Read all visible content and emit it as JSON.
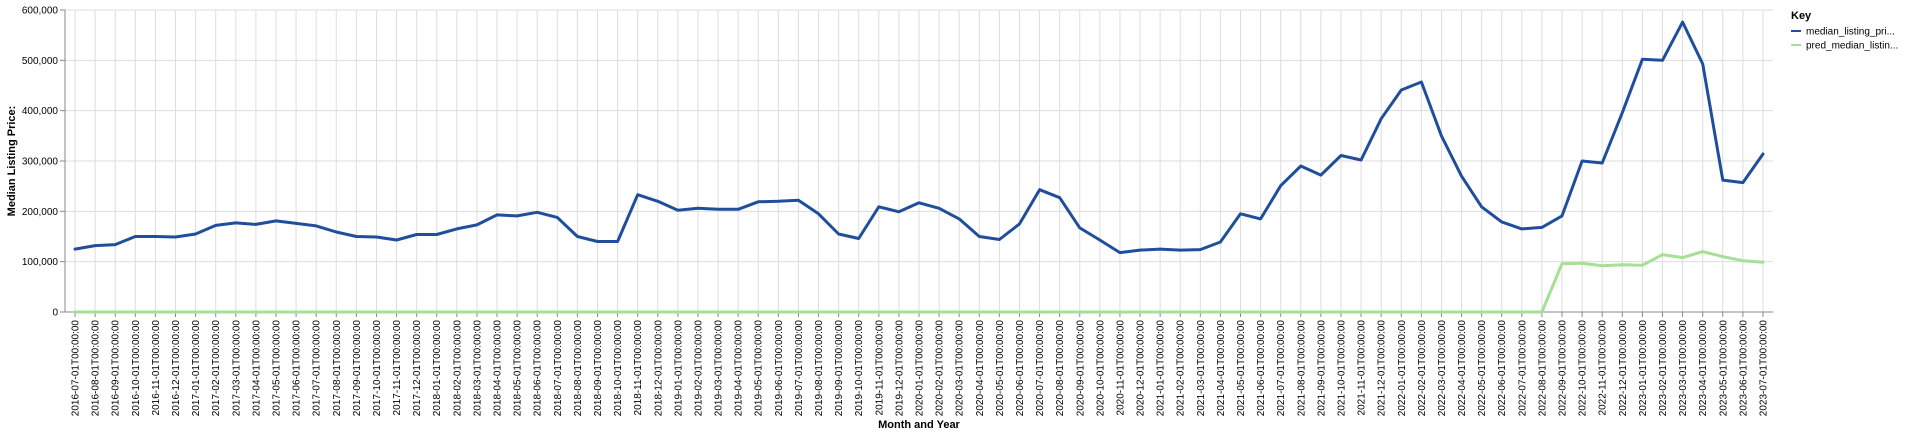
{
  "chart_data": {
    "type": "line",
    "xlabel": "Month and Year",
    "ylabel": "Median Listing Price:",
    "ylim": [
      0,
      600000
    ],
    "yticks": [
      0,
      100000,
      200000,
      300000,
      400000,
      500000,
      600000
    ],
    "ytick_labels": [
      "0",
      "100,000",
      "200,000",
      "300,000",
      "400,000",
      "500,000",
      "600,000"
    ],
    "grid": true,
    "legend": {
      "title": "Key",
      "position": "top-right"
    },
    "x": [
      "2016-07-01T00:00:00",
      "2016-08-01T00:00:00",
      "2016-09-01T00:00:00",
      "2016-10-01T00:00:00",
      "2016-11-01T00:00:00",
      "2016-12-01T00:00:00",
      "2017-01-01T00:00:00",
      "2017-02-01T00:00:00",
      "2017-03-01T00:00:00",
      "2017-04-01T00:00:00",
      "2017-05-01T00:00:00",
      "2017-06-01T00:00:00",
      "2017-07-01T00:00:00",
      "2017-08-01T00:00:00",
      "2017-09-01T00:00:00",
      "2017-10-01T00:00:00",
      "2017-11-01T00:00:00",
      "2017-12-01T00:00:00",
      "2018-01-01T00:00:00",
      "2018-02-01T00:00:00",
      "2018-03-01T00:00:00",
      "2018-04-01T00:00:00",
      "2018-05-01T00:00:00",
      "2018-06-01T00:00:00",
      "2018-07-01T00:00:00",
      "2018-08-01T00:00:00",
      "2018-09-01T00:00:00",
      "2018-10-01T00:00:00",
      "2018-11-01T00:00:00",
      "2018-12-01T00:00:00",
      "2019-01-01T00:00:00",
      "2019-02-01T00:00:00",
      "2019-03-01T00:00:00",
      "2019-04-01T00:00:00",
      "2019-05-01T00:00:00",
      "2019-06-01T00:00:00",
      "2019-07-01T00:00:00",
      "2019-08-01T00:00:00",
      "2019-09-01T00:00:00",
      "2019-10-01T00:00:00",
      "2019-11-01T00:00:00",
      "2019-12-01T00:00:00",
      "2020-01-01T00:00:00",
      "2020-02-01T00:00:00",
      "2020-03-01T00:00:00",
      "2020-04-01T00:00:00",
      "2020-05-01T00:00:00",
      "2020-06-01T00:00:00",
      "2020-07-01T00:00:00",
      "2020-08-01T00:00:00",
      "2020-09-01T00:00:00",
      "2020-10-01T00:00:00",
      "2020-11-01T00:00:00",
      "2020-12-01T00:00:00",
      "2021-01-01T00:00:00",
      "2021-02-01T00:00:00",
      "2021-03-01T00:00:00",
      "2021-04-01T00:00:00",
      "2021-05-01T00:00:00",
      "2021-06-01T00:00:00",
      "2021-07-01T00:00:00",
      "2021-08-01T00:00:00",
      "2021-09-01T00:00:00",
      "2021-10-01T00:00:00",
      "2021-11-01T00:00:00",
      "2021-12-01T00:00:00",
      "2022-01-01T00:00:00",
      "2022-02-01T00:00:00",
      "2022-03-01T00:00:00",
      "2022-04-01T00:00:00",
      "2022-05-01T00:00:00",
      "2022-06-01T00:00:00",
      "2022-07-01T00:00:00",
      "2022-08-01T00:00:00",
      "2022-09-01T00:00:00",
      "2022-10-01T00:00:00",
      "2022-11-01T00:00:00",
      "2022-12-01T00:00:00",
      "2023-01-01T00:00:00",
      "2023-02-01T00:00:00",
      "2023-03-01T00:00:00",
      "2023-04-01T00:00:00",
      "2023-05-01T00:00:00",
      "2023-06-01T00:00:00",
      "2023-07-01T00:00:00"
    ],
    "series": [
      {
        "name": "median_listing_pri...",
        "color": "#1f4e9c",
        "values": [
          125000,
          132000,
          134000,
          150000,
          150000,
          149000,
          155000,
          172000,
          177000,
          174000,
          181000,
          176000,
          171000,
          159000,
          150000,
          149000,
          143000,
          154000,
          154000,
          165000,
          173000,
          193000,
          191000,
          198000,
          188000,
          150000,
          140000,
          140000,
          233000,
          220000,
          202000,
          206000,
          204000,
          204000,
          219000,
          220000,
          222000,
          195000,
          155000,
          146000,
          209000,
          199000,
          217000,
          206000,
          185000,
          150000,
          144000,
          175000,
          243000,
          227000,
          167000,
          143000,
          118000,
          123000,
          125000,
          123000,
          124000,
          139000,
          195000,
          185000,
          251000,
          290000,
          272000,
          311000,
          302000,
          384000,
          441000,
          457000,
          350000,
          270000,
          209000,
          179000,
          165000,
          168000,
          191000,
          300000,
          296000,
          396000,
          502000,
          500000,
          576000,
          493000,
          262000,
          257000,
          314000
        ]
      },
      {
        "name": "pred_median_listin...",
        "color": "#a6df96",
        "values": [
          0,
          0,
          0,
          0,
          0,
          0,
          0,
          0,
          0,
          0,
          0,
          0,
          0,
          0,
          0,
          0,
          0,
          0,
          0,
          0,
          0,
          0,
          0,
          0,
          0,
          0,
          0,
          0,
          0,
          0,
          0,
          0,
          0,
          0,
          0,
          0,
          0,
          0,
          0,
          0,
          0,
          0,
          0,
          0,
          0,
          0,
          0,
          0,
          0,
          0,
          0,
          0,
          0,
          0,
          0,
          0,
          0,
          0,
          0,
          0,
          0,
          0,
          0,
          0,
          0,
          0,
          0,
          0,
          0,
          0,
          0,
          0,
          0,
          0,
          96000,
          97000,
          92000,
          94000,
          93000,
          114000,
          108000,
          120000,
          110000,
          102000,
          99000
        ]
      }
    ]
  }
}
